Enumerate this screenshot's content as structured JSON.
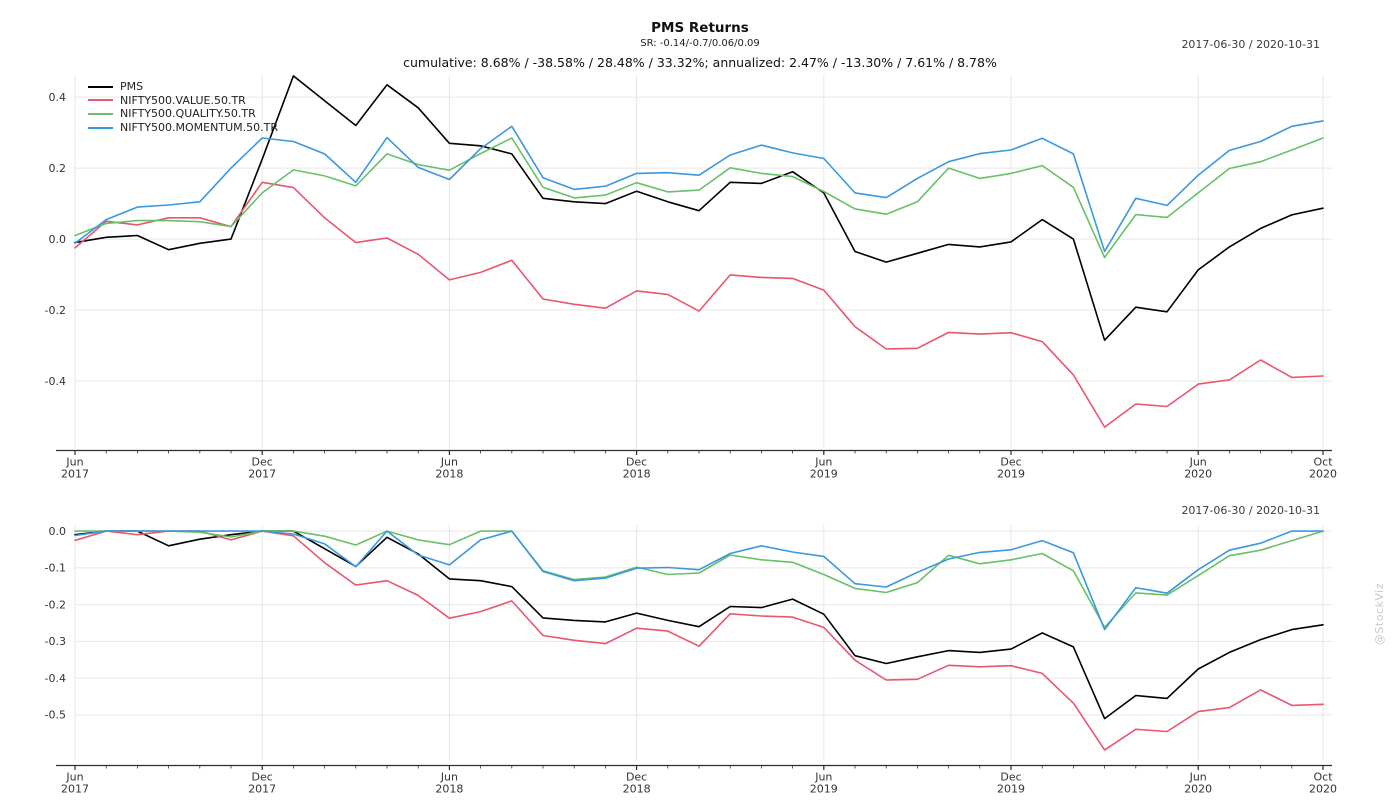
{
  "header": {
    "title": "PMS Returns",
    "sr_line": "SR: -0.14/-0.7/0.06/0.09",
    "summary_line": "cumulative: 8.68% / -38.58% / 28.48% / 33.32%; annualized: 2.47% / -13.30% / 7.61% / 8.78%",
    "date_range_top": "2017-06-30 / 2020-10-31",
    "date_range_bottom": "2017-06-30 / 2020-10-31"
  },
  "watermark": "@StockViz",
  "colors": {
    "pms": "#000000",
    "value": "#e8566f",
    "quality": "#68c168",
    "momentum": "#3a98e0",
    "grid": "#e7e7e7",
    "axis": "#2f2f2f",
    "tick_label": "#333333",
    "watermark": "#c9c9c9"
  },
  "chart_data": [
    {
      "name": "cumulative-returns",
      "type": "line",
      "x_unit": "month",
      "x_start": "2017-06",
      "x_end": "2020-10",
      "grid": true,
      "legend_position": "top-left",
      "x_ticks": [
        {
          "pos": 0,
          "label": "Jun",
          "year": "2017"
        },
        {
          "pos": 6,
          "label": "Dec",
          "year": "2017"
        },
        {
          "pos": 12,
          "label": "Jun",
          "year": "2018"
        },
        {
          "pos": 18,
          "label": "Dec",
          "year": "2018"
        },
        {
          "pos": 24,
          "label": "Jun",
          "year": "2019"
        },
        {
          "pos": 30,
          "label": "Dec",
          "year": "2019"
        },
        {
          "pos": 36,
          "label": "Jun",
          "year": "2020"
        },
        {
          "pos": 40,
          "label": "Oct",
          "year": "2020"
        }
      ],
      "y_ticks": [
        0.4,
        0.2,
        0.0,
        -0.2,
        -0.4
      ],
      "ylim": [
        -0.589,
        0.4625
      ],
      "series": [
        {
          "name": "PMS",
          "color_key": "pms",
          "values": [
            -0.01,
            0.005,
            0.01,
            -0.03,
            -0.012,
            0.0,
            0.225,
            0.46,
            0.39,
            0.32,
            0.435,
            0.37,
            0.27,
            0.263,
            0.24,
            0.115,
            0.105,
            0.1,
            0.135,
            0.105,
            0.08,
            0.16,
            0.157,
            0.19,
            0.13,
            -0.035,
            -0.065,
            -0.04,
            -0.015,
            -0.022,
            -0.008,
            0.055,
            0.0,
            -0.285,
            -0.192,
            -0.205,
            -0.087,
            -0.022,
            0.03,
            0.068,
            0.087
          ]
        },
        {
          "name": "NIFTY500.VALUE.50.TR",
          "color_key": "value",
          "values": [
            -0.025,
            0.05,
            0.04,
            0.06,
            0.06,
            0.035,
            0.16,
            0.145,
            0.06,
            -0.01,
            0.003,
            -0.043,
            -0.115,
            -0.094,
            -0.06,
            -0.169,
            -0.184,
            -0.195,
            -0.146,
            -0.156,
            -0.203,
            -0.101,
            -0.108,
            -0.111,
            -0.144,
            -0.247,
            -0.31,
            -0.308,
            -0.263,
            -0.268,
            -0.264,
            -0.289,
            -0.383,
            -0.53,
            -0.465,
            -0.472,
            -0.409,
            -0.397,
            -0.341,
            -0.39,
            -0.386
          ]
        },
        {
          "name": "NIFTY500.QUALITY.50.TR",
          "color_key": "quality",
          "values": [
            0.01,
            0.044,
            0.052,
            0.052,
            0.049,
            0.035,
            0.13,
            0.195,
            0.178,
            0.15,
            0.24,
            0.21,
            0.194,
            0.241,
            0.285,
            0.146,
            0.116,
            0.124,
            0.159,
            0.133,
            0.138,
            0.201,
            0.185,
            0.176,
            0.134,
            0.085,
            0.07,
            0.105,
            0.2,
            0.171,
            0.185,
            0.207,
            0.146,
            -0.052,
            0.069,
            0.061,
            0.13,
            0.199,
            0.218,
            0.251,
            0.285
          ]
        },
        {
          "name": "NIFTY500.MOMENTUM.50.TR",
          "color_key": "momentum",
          "values": [
            -0.012,
            0.055,
            0.09,
            0.096,
            0.105,
            0.2,
            0.285,
            0.275,
            0.24,
            0.16,
            0.286,
            0.202,
            0.168,
            0.255,
            0.318,
            0.173,
            0.14,
            0.149,
            0.185,
            0.187,
            0.18,
            0.237,
            0.265,
            0.243,
            0.227,
            0.13,
            0.117,
            0.171,
            0.218,
            0.241,
            0.251,
            0.284,
            0.24,
            -0.035,
            0.115,
            0.095,
            0.18,
            0.25,
            0.275,
            0.318,
            0.333
          ]
        }
      ]
    },
    {
      "name": "drawdowns",
      "type": "line",
      "x_unit": "month",
      "x_start": "2017-06",
      "x_end": "2020-10",
      "grid": true,
      "legend_position": "none",
      "x_ticks": [
        {
          "pos": 0,
          "label": "Jun",
          "year": "2017"
        },
        {
          "pos": 6,
          "label": "Dec",
          "year": "2017"
        },
        {
          "pos": 12,
          "label": "Jun",
          "year": "2018"
        },
        {
          "pos": 18,
          "label": "Dec",
          "year": "2018"
        },
        {
          "pos": 24,
          "label": "Jun",
          "year": "2019"
        },
        {
          "pos": 30,
          "label": "Dec",
          "year": "2019"
        },
        {
          "pos": 36,
          "label": "Jun",
          "year": "2020"
        },
        {
          "pos": 40,
          "label": "Oct",
          "year": "2020"
        }
      ],
      "y_ticks": [
        0.0,
        -0.1,
        -0.2,
        -0.3,
        -0.4,
        -0.5
      ],
      "ylim": [
        -0.6225,
        0.0165
      ],
      "series": [
        {
          "name": "PMS",
          "color_key": "pms",
          "values": [
            -0.01,
            0,
            0,
            -0.04,
            -0.022,
            -0.01,
            0,
            0,
            -0.048,
            -0.096,
            -0.017,
            -0.062,
            -0.13,
            -0.135,
            -0.151,
            -0.236,
            -0.243,
            -0.247,
            -0.223,
            -0.243,
            -0.26,
            -0.205,
            -0.208,
            -0.185,
            -0.226,
            -0.339,
            -0.36,
            -0.342,
            -0.325,
            -0.33,
            -0.321,
            -0.277,
            -0.315,
            -0.51,
            -0.447,
            -0.455,
            -0.375,
            -0.33,
            -0.295,
            -0.268,
            -0.255
          ]
        },
        {
          "name": "NIFTY500.VALUE.50.TR",
          "color_key": "value",
          "values": [
            -0.025,
            0,
            -0.01,
            0,
            0,
            -0.024,
            0,
            -0.013,
            -0.086,
            -0.147,
            -0.135,
            -0.175,
            -0.237,
            -0.219,
            -0.19,
            -0.284,
            -0.297,
            -0.306,
            -0.264,
            -0.272,
            -0.313,
            -0.225,
            -0.231,
            -0.234,
            -0.262,
            -0.351,
            -0.405,
            -0.403,
            -0.365,
            -0.369,
            -0.366,
            -0.387,
            -0.468,
            -0.595,
            -0.539,
            -0.545,
            -0.491,
            -0.48,
            -0.432,
            -0.474,
            -0.471
          ]
        },
        {
          "name": "NIFTY500.QUALITY.50.TR",
          "color_key": "quality",
          "values": [
            0,
            0,
            0,
            0,
            -0.003,
            -0.016,
            0,
            0,
            -0.014,
            -0.038,
            0,
            -0.024,
            -0.037,
            0,
            0,
            -0.108,
            -0.132,
            -0.125,
            -0.098,
            -0.118,
            -0.114,
            -0.065,
            -0.078,
            -0.085,
            -0.118,
            -0.156,
            -0.167,
            -0.14,
            -0.066,
            -0.089,
            -0.078,
            -0.061,
            -0.108,
            -0.262,
            -0.168,
            -0.174,
            -0.121,
            -0.067,
            -0.052,
            -0.026,
            0
          ]
        },
        {
          "name": "NIFTY500.MOMENTUM.50.TR",
          "color_key": "momentum",
          "values": [
            -0.012,
            0,
            0,
            0,
            0,
            0,
            0,
            -0.008,
            -0.035,
            -0.097,
            0,
            -0.065,
            -0.092,
            -0.024,
            0,
            -0.11,
            -0.135,
            -0.128,
            -0.101,
            -0.099,
            -0.105,
            -0.061,
            -0.04,
            -0.057,
            -0.069,
            -0.143,
            -0.152,
            -0.112,
            -0.076,
            -0.058,
            -0.051,
            -0.026,
            -0.059,
            -0.268,
            -0.154,
            -0.169,
            -0.105,
            -0.052,
            -0.033,
            0,
            0
          ]
        }
      ]
    }
  ]
}
